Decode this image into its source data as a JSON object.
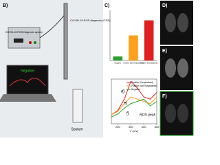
{
  "panels": {
    "b": "B)",
    "c": "C)",
    "d": "D)",
    "e": "E)",
    "f": "F)"
  },
  "device": {
    "box_label": "COVID-19 ROS Diagnosis system",
    "callout": "COVID-19 ROS diagnosis (CRD)",
    "screen_text": "Negative",
    "sample": "Sputum"
  },
  "chart_data": [
    {
      "type": "bar",
      "categories": [
        "Negative",
        "Positive (Not Hospitalized)",
        "Positive (Hospitalized)"
      ],
      "values": [
        80,
        500,
        800
      ],
      "colors": [
        "#2ca02c",
        "#ff9f1a",
        "#e02020"
      ],
      "ylim": [
        0,
        1000
      ]
    },
    {
      "type": "line",
      "x": [
        100,
        200,
        300,
        400,
        500,
        600,
        700,
        800
      ],
      "xlim": [
        100,
        800
      ],
      "xticks": [
        200,
        400,
        600,
        800
      ],
      "ylim": [
        0,
        100
      ],
      "x_label": "V (mV)",
      "legend": "top-right",
      "series": [
        {
          "name": "Positive (Hospitalized)",
          "color": "#e02020",
          "values": [
            20,
            30,
            55,
            95,
            80,
            60,
            55,
            70
          ]
        },
        {
          "name": "Positive (Not Hospitalized)",
          "color": "#ff9f1a",
          "values": [
            20,
            28,
            45,
            60,
            55,
            50,
            45,
            60
          ]
        },
        {
          "name": "Negative",
          "color": "#2ca02c",
          "values": [
            15,
            22,
            35,
            45,
            50,
            55,
            40,
            50
          ]
        }
      ],
      "annotations": {
        "d": "d)",
        "e": "e)",
        "f": "f)",
        "peak": "ROS peak"
      }
    }
  ]
}
